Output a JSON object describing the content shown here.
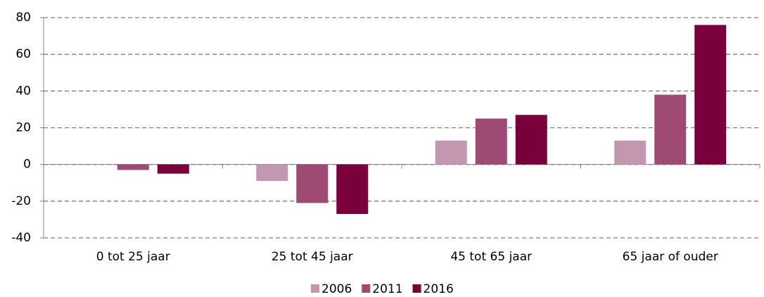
{
  "chart_data": {
    "type": "bar",
    "categories": [
      "0 tot 25 jaar",
      "25 tot 45 jaar",
      "45 tot 65 jaar",
      "65 jaar of ouder"
    ],
    "series": [
      {
        "name": "2006",
        "color": "#c397b0",
        "values": [
          0,
          -9,
          13,
          13
        ]
      },
      {
        "name": "2011",
        "color": "#9e4a74",
        "values": [
          -3,
          -21,
          25,
          38
        ]
      },
      {
        "name": "2016",
        "color": "#7a003c",
        "values": [
          -5,
          -27,
          27,
          76
        ]
      }
    ],
    "ylim": [
      -40,
      80
    ],
    "yticks": [
      -40,
      -20,
      0,
      20,
      40,
      60,
      80
    ],
    "grid": true,
    "legend": "bottom"
  }
}
